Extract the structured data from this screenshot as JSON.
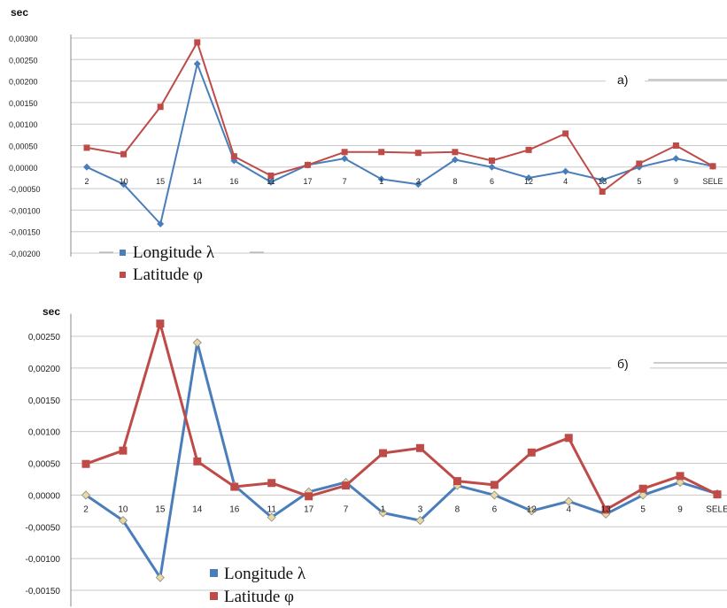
{
  "chart_data": [
    {
      "type": "line",
      "panel_label": "а)",
      "ylabel": "sec",
      "categories": [
        "2",
        "10",
        "15",
        "14",
        "16",
        "11",
        "17",
        "7",
        "1",
        "3",
        "8",
        "6",
        "12",
        "4",
        "13",
        "5",
        "9",
        "SELE"
      ],
      "y_tick_labels": [
        "0,00300",
        "0,00250",
        "0,00200",
        "0,00150",
        "0,00100",
        "0,00050",
        "0,00000",
        "-0,00050",
        "-0,00100",
        "-0,00150",
        "-0,00200"
      ],
      "ylim": [
        -0.002,
        0.003
      ],
      "grid": true,
      "legend_position": "bottom-left",
      "series": [
        {
          "name": "Longitude λ",
          "color": "#4a7ebb",
          "marker": "diamond",
          "values": [
            0.0,
            -0.0004,
            -0.00132,
            0.0024,
            0.00015,
            -0.00035,
            5e-05,
            0.0002,
            -0.00028,
            -0.0004,
            0.00017,
            0.0,
            -0.00025,
            -0.0001,
            -0.0003,
            0.0,
            0.0002,
            2e-05
          ]
        },
        {
          "name": "Latitude φ",
          "color": "#be4b48",
          "marker": "square",
          "values": [
            0.00045,
            0.0003,
            0.0014,
            0.0029,
            0.00025,
            -0.0002,
            5e-05,
            0.00035,
            0.00035,
            0.00033,
            0.00035,
            0.00015,
            0.0004,
            0.00078,
            -0.00057,
            8e-05,
            0.0005,
            2e-05
          ]
        }
      ]
    },
    {
      "type": "line",
      "panel_label": "б)",
      "ylabel": "sec",
      "categories": [
        "2",
        "10",
        "15",
        "14",
        "16",
        "11",
        "17",
        "7",
        "1",
        "3",
        "8",
        "6",
        "12",
        "4",
        "13",
        "5",
        "9",
        "SELE"
      ],
      "y_tick_labels": [
        "0,00250",
        "0,00200",
        "0,00150",
        "0,00100",
        "0,00050",
        "0,00000",
        "-0,00050",
        "-0,00100",
        "-0,00150"
      ],
      "ylim": [
        -0.0017,
        0.0028
      ],
      "grid": true,
      "legend_position": "bottom-center",
      "series": [
        {
          "name": "Longitude λ",
          "color": "#4a7ebb",
          "marker": "diamond",
          "values": [
            0.0,
            -0.0004,
            -0.0013,
            0.0024,
            0.00015,
            -0.00035,
            5e-05,
            0.0002,
            -0.00028,
            -0.0004,
            0.00015,
            0.0,
            -0.00025,
            -0.0001,
            -0.0003,
            0.0,
            0.0002,
            2e-05
          ]
        },
        {
          "name": "Latitude φ",
          "color": "#be4b48",
          "marker": "square",
          "values": [
            0.00049,
            0.0007,
            0.0027,
            0.00053,
            0.00013,
            0.00019,
            -2e-05,
            0.00015,
            0.00066,
            0.00074,
            0.00022,
            0.00016,
            0.00067,
            0.0009,
            -0.00023,
            0.0001,
            0.0003,
            1e-05
          ]
        }
      ]
    }
  ]
}
